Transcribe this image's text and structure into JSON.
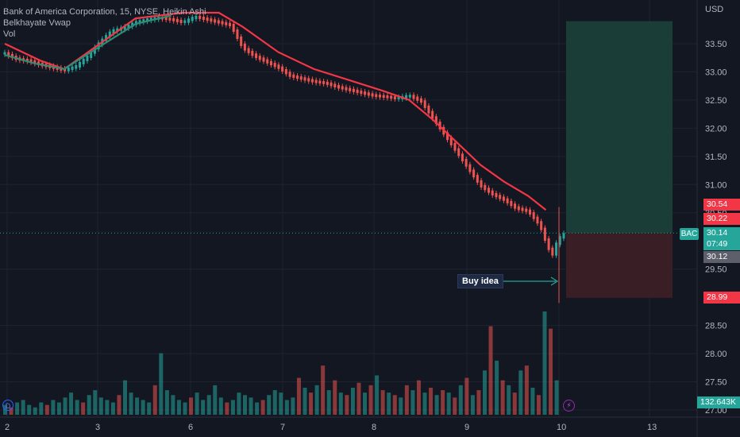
{
  "legend": {
    "symbol_line": "Bank of America Corporation, 15, NYSE, Heikin Ashi",
    "indicator1": "Belkhayate Vwap",
    "indicator2": "Vol"
  },
  "currency": "USD",
  "annotation": {
    "text": "Buy idea"
  },
  "price_tags": {
    "target_upper": "30.54",
    "red_mid": "30.22",
    "last": "30.14",
    "countdown": "07:49",
    "current": "30.12",
    "stop": "28.99",
    "volume": "132.643K",
    "symbol": "BAC"
  },
  "colors": {
    "background": "#131722",
    "up": "#26a69a",
    "down": "#ef5350",
    "vwap_red": "#f23645",
    "vwap_green": "#2e8b74",
    "target_zone": "#1b3f3a",
    "stop_zone": "#3b1f27"
  },
  "icons": [
    "dividend-icon",
    "earnings-bolt-icon"
  ],
  "chart_data": {
    "type": "candlestick",
    "y_axis": {
      "min": 26.9,
      "max": 33.9,
      "ticks": [
        "33.50",
        "33.00",
        "32.50",
        "32.00",
        "31.50",
        "31.00",
        "30.50",
        "29.50",
        "28.50",
        "28.00",
        "27.50",
        "27.00"
      ]
    },
    "x_axis": {
      "ticks": [
        "2",
        "3",
        "6",
        "7",
        "8",
        "9",
        "10",
        "13"
      ]
    },
    "price_path": [
      [
        0,
        33.35
      ],
      [
        2,
        33.25
      ],
      [
        4,
        33.22
      ],
      [
        6,
        33.15
      ],
      [
        8,
        33.1
      ],
      [
        10,
        33.05
      ],
      [
        12,
        33.12
      ],
      [
        14,
        33.3
      ],
      [
        16,
        33.55
      ],
      [
        18,
        33.75
      ],
      [
        20,
        33.8
      ],
      [
        22,
        33.9
      ],
      [
        24,
        33.95
      ],
      [
        26,
        33.98
      ],
      [
        28,
        33.95
      ],
      [
        30,
        33.9
      ],
      [
        32,
        34.0
      ],
      [
        34,
        33.95
      ],
      [
        36,
        33.9
      ],
      [
        38,
        33.85
      ],
      [
        40,
        33.45
      ],
      [
        42,
        33.3
      ],
      [
        44,
        33.2
      ],
      [
        46,
        33.1
      ],
      [
        48,
        32.95
      ],
      [
        50,
        32.9
      ],
      [
        52,
        32.85
      ],
      [
        54,
        32.82
      ],
      [
        56,
        32.75
      ],
      [
        58,
        32.7
      ],
      [
        60,
        32.65
      ],
      [
        62,
        32.6
      ],
      [
        64,
        32.58
      ],
      [
        66,
        32.55
      ],
      [
        68,
        32.6
      ],
      [
        70,
        32.5
      ],
      [
        72,
        32.2
      ],
      [
        74,
        31.9
      ],
      [
        76,
        31.6
      ],
      [
        78,
        31.3
      ],
      [
        80,
        31.0
      ],
      [
        82,
        30.85
      ],
      [
        84,
        30.75
      ],
      [
        86,
        30.6
      ],
      [
        88,
        30.55
      ],
      [
        90,
        30.3
      ],
      [
        91,
        30.0
      ],
      [
        92,
        29.75
      ],
      [
        93,
        30.05
      ],
      [
        94,
        30.14
      ]
    ],
    "vwap_red": [
      [
        0,
        33.5
      ],
      [
        6,
        33.2
      ],
      [
        10,
        33.05
      ],
      [
        14,
        33.35
      ],
      [
        22,
        33.95
      ],
      [
        30,
        34.05
      ],
      [
        36,
        34.05
      ],
      [
        40,
        33.8
      ],
      [
        46,
        33.35
      ],
      [
        52,
        33.05
      ],
      [
        58,
        32.85
      ],
      [
        64,
        32.65
      ],
      [
        68,
        32.5
      ],
      [
        72,
        32.15
      ],
      [
        76,
        31.75
      ],
      [
        80,
        31.35
      ],
      [
        84,
        31.05
      ],
      [
        88,
        30.8
      ],
      [
        91,
        30.55
      ]
    ],
    "vwap_green": [
      [
        0,
        33.3
      ],
      [
        5,
        33.15
      ],
      [
        10,
        33.05
      ],
      [
        16,
        33.45
      ],
      [
        22,
        33.85
      ],
      [
        28,
        34.0
      ]
    ],
    "volume": [
      4,
      3,
      5,
      6,
      4,
      3,
      5,
      4,
      6,
      5,
      7,
      9,
      6,
      5,
      8,
      10,
      7,
      6,
      5,
      8,
      14,
      9,
      7,
      6,
      5,
      12,
      25,
      10,
      8,
      6,
      5,
      7,
      9,
      6,
      8,
      12,
      7,
      5,
      6,
      9,
      8,
      7,
      5,
      6,
      8,
      10,
      9,
      6,
      7,
      15,
      11,
      9,
      12,
      20,
      10,
      14,
      9,
      8,
      11,
      13,
      9,
      12,
      16,
      10,
      9,
      8,
      7,
      12,
      10,
      14,
      9,
      11,
      8,
      10,
      9,
      7,
      12,
      15,
      8,
      10,
      18,
      36,
      22,
      14,
      12,
      9,
      18,
      20,
      11,
      8,
      42,
      35,
      14
    ],
    "current_price": 30.14,
    "target": 33.9,
    "entry": 30.14,
    "stop": 28.99
  }
}
